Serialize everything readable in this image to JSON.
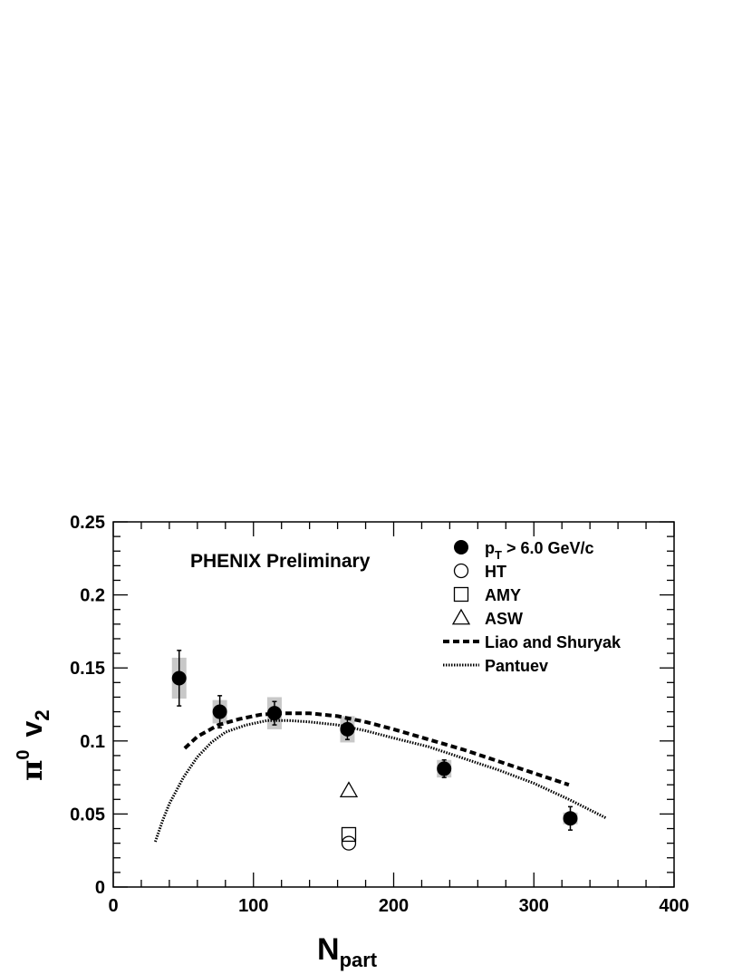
{
  "chart_data": {
    "type": "scatter",
    "annotation": "PHENIX Preliminary",
    "xlabel": {
      "main": "N",
      "sub": "part"
    },
    "ylabel": {
      "main": "π",
      "sup": "0",
      "sym": "v",
      "sub": "2"
    },
    "xlim": [
      0,
      400
    ],
    "ylim": [
      0,
      0.25
    ],
    "x_ticks": [
      {
        "value": 0,
        "label": "0"
      },
      {
        "value": 100,
        "label": "100"
      },
      {
        "value": 200,
        "label": "200"
      },
      {
        "value": 300,
        "label": "300"
      },
      {
        "value": 400,
        "label": "400"
      }
    ],
    "y_ticks": [
      {
        "value": 0,
        "label": "0"
      },
      {
        "value": 0.05,
        "label": "0.05"
      },
      {
        "value": 0.1,
        "label": "0.1"
      },
      {
        "value": 0.15,
        "label": "0.15"
      },
      {
        "value": 0.2,
        "label": "0.2"
      },
      {
        "value": 0.25,
        "label": "0.25"
      }
    ],
    "legend": {
      "placement": "top-right",
      "entries": [
        {
          "marker": "filled-circle",
          "label_main": "p",
          "label_sub": "T",
          "label_rest": " > 6.0 GeV/c"
        },
        {
          "marker": "open-circle",
          "label_main": "HT",
          "label_sub": "",
          "label_rest": ""
        },
        {
          "marker": "open-square",
          "label_main": "AMY",
          "label_sub": "",
          "label_rest": ""
        },
        {
          "marker": "open-triangle",
          "label_main": "ASW",
          "label_sub": "",
          "label_rest": ""
        },
        {
          "marker": "dashed-line",
          "label_main": "Liao and Shuryak",
          "label_sub": "",
          "label_rest": ""
        },
        {
          "marker": "dotted-line",
          "label_main": "Pantuev",
          "label_sub": "",
          "label_rest": ""
        }
      ]
    },
    "series": [
      {
        "name": "pT > 6.0 GeV/c",
        "marker": "filled-circle",
        "points": [
          {
            "x": 47,
            "y": 0.143,
            "err": 0.019,
            "sys": 0.014
          },
          {
            "x": 76,
            "y": 0.12,
            "err": 0.011,
            "sys": 0.008
          },
          {
            "x": 115,
            "y": 0.119,
            "err": 0.008,
            "sys": 0.011
          },
          {
            "x": 167,
            "y": 0.108,
            "err": 0.007,
            "sys": 0.009
          },
          {
            "x": 236,
            "y": 0.081,
            "err": 0.006,
            "sys": 0.006
          },
          {
            "x": 326,
            "y": 0.047,
            "err": 0.008,
            "sys": 0.004
          }
        ]
      },
      {
        "name": "HT",
        "marker": "open-circle",
        "points": [
          {
            "x": 168,
            "y": 0.03
          }
        ]
      },
      {
        "name": "AMY",
        "marker": "open-square",
        "points": [
          {
            "x": 168,
            "y": 0.036
          }
        ]
      },
      {
        "name": "ASW",
        "marker": "open-triangle",
        "points": [
          {
            "x": 168,
            "y": 0.066
          }
        ]
      },
      {
        "name": "Liao and Shuryak",
        "marker": "dashed-line",
        "points": [
          {
            "x": 51,
            "y": 0.095
          },
          {
            "x": 60,
            "y": 0.103
          },
          {
            "x": 75,
            "y": 0.111
          },
          {
            "x": 90,
            "y": 0.115
          },
          {
            "x": 105,
            "y": 0.118
          },
          {
            "x": 120,
            "y": 0.119
          },
          {
            "x": 140,
            "y": 0.119
          },
          {
            "x": 160,
            "y": 0.117
          },
          {
            "x": 180,
            "y": 0.113
          },
          {
            "x": 200,
            "y": 0.108
          },
          {
            "x": 225,
            "y": 0.101
          },
          {
            "x": 250,
            "y": 0.094
          },
          {
            "x": 275,
            "y": 0.086
          },
          {
            "x": 300,
            "y": 0.078
          },
          {
            "x": 325,
            "y": 0.07
          }
        ]
      },
      {
        "name": "Pantuev",
        "marker": "dotted-line",
        "points": [
          {
            "x": 30,
            "y": 0.031
          },
          {
            "x": 35,
            "y": 0.045
          },
          {
            "x": 40,
            "y": 0.057
          },
          {
            "x": 50,
            "y": 0.075
          },
          {
            "x": 60,
            "y": 0.089
          },
          {
            "x": 70,
            "y": 0.099
          },
          {
            "x": 80,
            "y": 0.106
          },
          {
            "x": 95,
            "y": 0.111
          },
          {
            "x": 110,
            "y": 0.114
          },
          {
            "x": 125,
            "y": 0.114
          },
          {
            "x": 140,
            "y": 0.113
          },
          {
            "x": 160,
            "y": 0.111
          },
          {
            "x": 180,
            "y": 0.107
          },
          {
            "x": 200,
            "y": 0.102
          },
          {
            "x": 225,
            "y": 0.096
          },
          {
            "x": 250,
            "y": 0.088
          },
          {
            "x": 275,
            "y": 0.08
          },
          {
            "x": 300,
            "y": 0.071
          },
          {
            "x": 325,
            "y": 0.06
          },
          {
            "x": 352,
            "y": 0.047
          }
        ]
      }
    ],
    "colors": {
      "marker": "#000000",
      "systematic_box": "#c8c8c8",
      "frame": "#000000"
    }
  }
}
